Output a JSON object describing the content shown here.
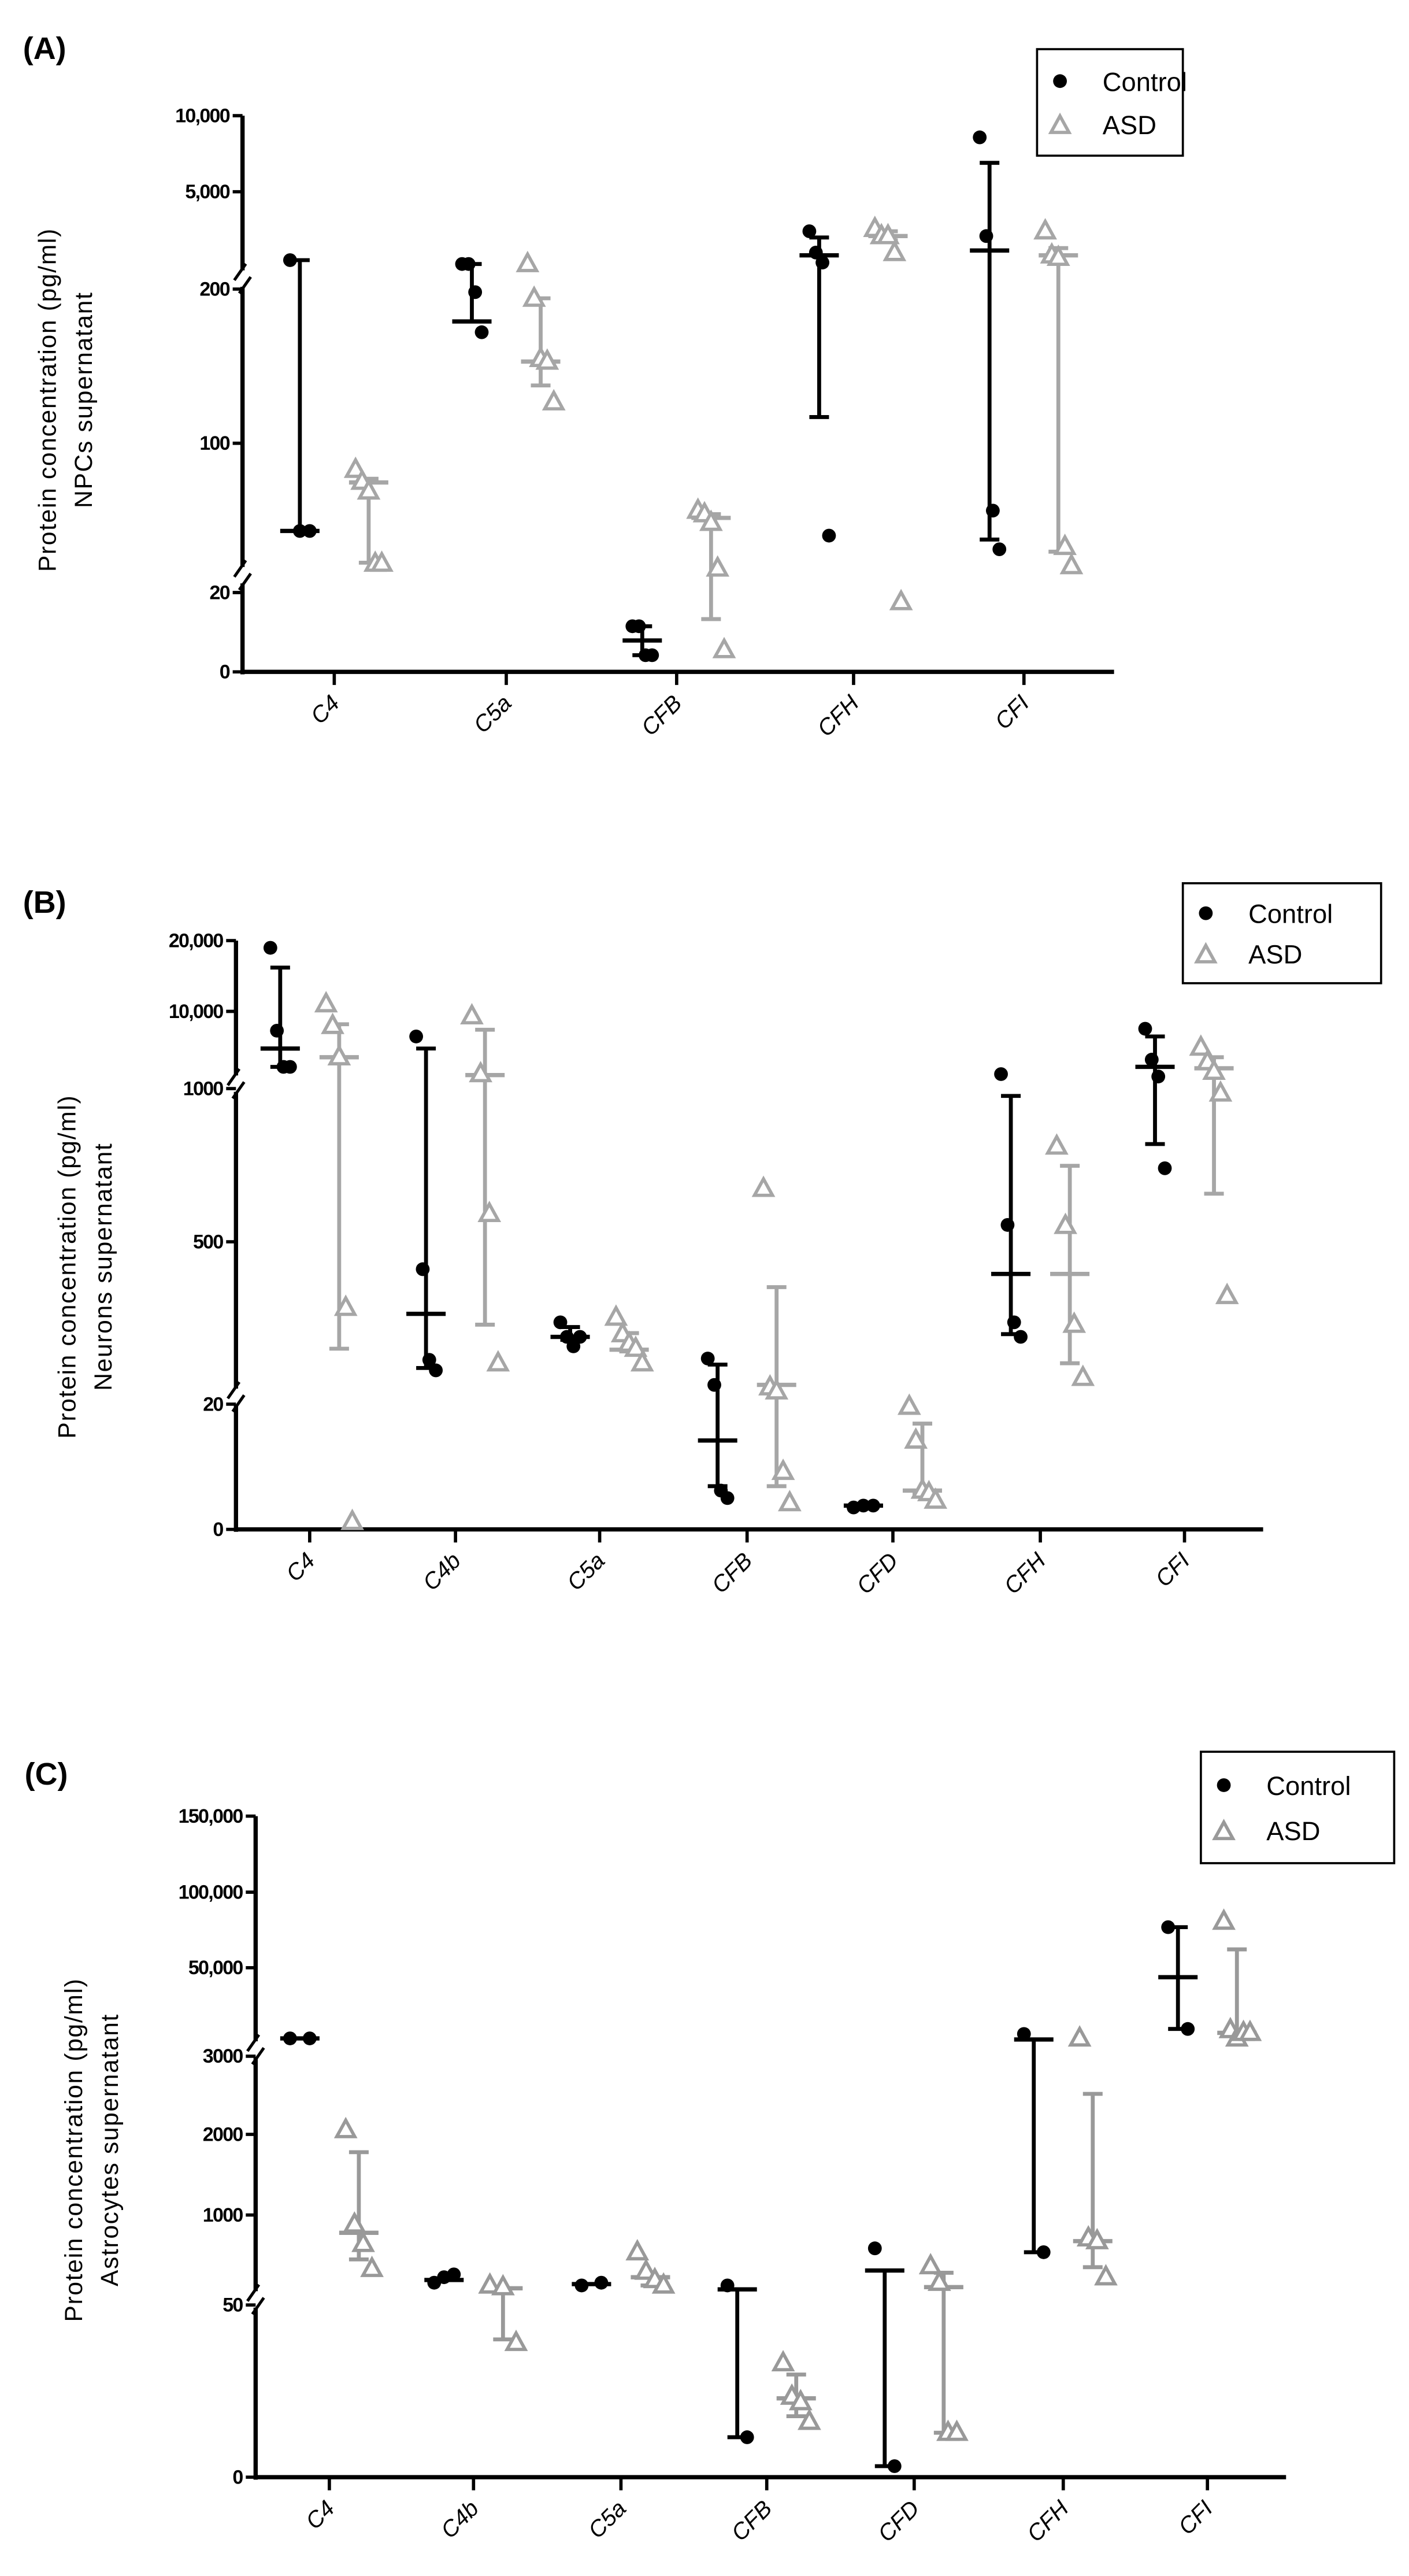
{
  "chart_data": [
    {
      "type": "scatter",
      "panel_label": "(A)",
      "ylabel": [
        "Protein concentration (pg/ml)",
        "NPCs supernatant"
      ],
      "yticks": [
        {
          "label": "0",
          "value": 0
        },
        {
          "label": "20",
          "value": 20
        },
        {
          "label": "100",
          "value": 100
        },
        {
          "label": "200",
          "value": 200
        },
        {
          "label": "5,000",
          "value": 5000
        },
        {
          "label": "10,000",
          "value": 10000
        }
      ],
      "axis_breaks": [
        "20-100",
        "200-5,000"
      ],
      "categories": [
        "C4",
        "C5a",
        "CFB",
        "CFH",
        "CFI"
      ],
      "legend": {
        "placement": "top-right",
        "entries": [
          "Control",
          "ASD"
        ]
      },
      "series": [
        {
          "name": "Control",
          "marker": "circle",
          "color": "#000000",
          "groups": [
            {
              "points": [
                1626,
                53,
                53
              ],
              "mean": 53,
              "lo": 53,
              "hi": 1626
            },
            {
              "points": [
                1436,
                1436,
                198,
                172
              ],
              "mean": 179,
              "lo": 179,
              "hi": 1436
            },
            {
              "points": [
                11.5,
                11.5,
                4.2,
                4.2
              ],
              "mean": 7.9,
              "lo": 4.2,
              "hi": 11.5
            },
            {
              "points": [
                3051,
                2000,
                1507,
                50.5
              ],
              "mean": 1863,
              "lo": 117,
              "hi": 2743
            },
            {
              "points": [
                8576,
                2814,
                63.9,
                43.2
              ],
              "mean": 2101,
              "lo": 48.4,
              "hi": 6899
            }
          ]
        },
        {
          "name": "ASD",
          "marker": "triangle",
          "color": "#a6a6a6",
          "groups": [
            {
              "points": [
                85.8,
                79.4,
                74.2,
                35.5,
                35.5
              ],
              "mean": 79,
              "lo": 36,
              "hi": 81
            },
            {
              "points": [
                1436,
                193.8,
                154.7,
                153,
                126.6
              ],
              "mean": 153,
              "lo": 137.5,
              "hi": 194
            },
            {
              "points": [
                63.9,
                62,
                57.4,
                32.9,
                5.5
              ],
              "mean": 60,
              "lo": 13.3,
              "hi": 62
            },
            {
              "points": [
                3170,
                2814,
                2814,
                1982,
                17.6
              ],
              "mean": 2814,
              "lo": 2600,
              "hi": 3051
            },
            {
              "points": [
                3051,
                1863,
                1745,
                44.5,
                34.2
              ],
              "mean": 1863,
              "lo": 41.9,
              "hi": 2220
            }
          ]
        }
      ]
    },
    {
      "type": "scatter",
      "panel_label": "(B)",
      "ylabel": [
        "Protein concentration (pg/ml)",
        "Neurons supernatant"
      ],
      "yticks": [
        {
          "label": "0",
          "value": 0
        },
        {
          "label": "20",
          "value": 20
        },
        {
          "label": "500",
          "value": 500
        },
        {
          "label": "1000",
          "value": 1000
        },
        {
          "label": "10,000",
          "value": 10000
        },
        {
          "label": "20,000",
          "value": 20000
        }
      ],
      "axis_breaks": [
        "0-20",
        "500-1000"
      ],
      "categories": [
        "C4",
        "C4b",
        "C5a",
        "CFB",
        "CFD",
        "CFH",
        "CFI"
      ],
      "legend": {
        "placement": "top-right",
        "entries": [
          "Control",
          "ASD"
        ]
      },
      "series": [
        {
          "name": "Control",
          "marker": "circle",
          "color": "#000000",
          "groups": [
            {
              "points": [
                18980,
                7750,
                3531,
                3531
              ],
              "mean": 5669,
              "lo": 3531,
              "hi": 16190
            },
            {
              "points": [
                7075,
                419,
                151,
                120
              ],
              "mean": 287,
              "lo": 127,
              "hi": 5669
            },
            {
              "points": [
                262,
                219,
                191,
                219
              ],
              "mean": 219,
              "lo": 210,
              "hi": 248
            },
            {
              "points": [
                155,
                77,
                6.2,
                5
              ],
              "mean": 14.2,
              "lo": 6.9,
              "hi": 137
            },
            {
              "points": [
                3.5,
                3.8,
                3.8
              ],
              "mean": 3.8,
              "lo": 3.8,
              "hi": 3.8
            },
            {
              "points": [
                2688,
                555,
                262,
                219
              ],
              "mean": 405,
              "lo": 227,
              "hi": 976
            },
            {
              "points": [
                7975,
                4375,
                2406,
                740
              ],
              "mean": 3531,
              "lo": 819,
              "hi": 7075
            }
          ]
        },
        {
          "name": "ASD",
          "marker": "triangle",
          "color": "#a6a6a6",
          "groups": [
            {
              "points": [
                11020,
                8313,
                4656,
                305,
                1.2
              ],
              "mean": 4656,
              "lo": 184,
              "hi": 8500
            },
            {
              "points": [
                9438,
                2688,
                591,
                141
              ],
              "mean": 2575,
              "lo": 255,
              "hi": 7863
            },
            {
              "points": [
                276,
                227,
                199,
                184,
                141
              ],
              "mean": 181,
              "lo": 176,
              "hi": 230
            },
            {
              "points": [
                673,
                70,
                58,
                9.2,
                4.2
              ],
              "mean": 77,
              "lo": 6.9,
              "hi": 366
            },
            {
              "points": [
                19.6,
                14.2,
                6.2,
                5.8,
                4.6
              ],
              "mean": 6.2,
              "lo": 5.8,
              "hi": 16.9
            },
            {
              "points": [
                811,
                552,
                255,
                98
              ],
              "mean": 405,
              "lo": 141,
              "hi": 748
            },
            {
              "points": [
                5781,
                4094,
                2969,
                984,
                340
              ],
              "mean": 3363,
              "lo": 657,
              "hi": 4656
            }
          ]
        }
      ]
    },
    {
      "type": "scatter",
      "panel_label": "(C)",
      "ylabel": [
        "Protein concentration (pg/ml)",
        "Astrocytes supernatant"
      ],
      "yticks": [
        {
          "label": "0",
          "value": 0
        },
        {
          "label": "50",
          "value": 50
        },
        {
          "label": "1000",
          "value": 1000
        },
        {
          "label": "2000",
          "value": 2000
        },
        {
          "label": "3000",
          "value": 3000
        },
        {
          "label": "50,000",
          "value": 50000
        },
        {
          "label": "100,000",
          "value": 100000
        },
        {
          "label": "150,000",
          "value": 150000
        }
      ],
      "axis_breaks": [
        "0-50",
        "3000-50,000"
      ],
      "categories": [
        "C4",
        "C4b",
        "C5a",
        "CFB",
        "CFD",
        "CFH",
        "CFI"
      ],
      "legend": {
        "placement": "top-right",
        "entries": [
          "Control",
          "ASD"
        ]
      },
      "series": [
        {
          "name": "Control",
          "marker": "circle",
          "color": "#000000",
          "groups": [
            {
              "points": [
                12460,
                12460
              ],
              "mean": 12460,
              "lo": 12460,
              "hi": 12460
            },
            {
              "points": [
                285,
                343,
                373
              ],
              "mean": 314,
              "lo": 314,
              "hi": 314
            },
            {
              "points": [
                256,
                285
              ],
              "mean": 270,
              "lo": 270,
              "hi": 270
            },
            {
              "points": [
                256,
                11.6
              ],
              "mean": 215,
              "lo": 11.6,
              "hi": 215
            },
            {
              "points": [
                648,
                3.2
              ],
              "mean": 414,
              "lo": 3.2,
              "hi": 414
            },
            {
              "points": [
                14824,
                607
              ],
              "mean": 11869,
              "lo": 607,
              "hi": 11869
            },
            {
              "points": [
                76838,
                17484
              ],
              "mean": 44975,
              "lo": 17484,
              "hi": 76838
            }
          ]
        },
        {
          "name": "ASD",
          "marker": "triangle",
          "color": "#999999",
          "groups": [
            {
              "points": [
                2055,
                900,
                695,
                431
              ],
              "mean": 812,
              "lo": 531,
              "hi": 1779
            },
            {
              "points": [
                256,
                238,
                39
              ],
              "mean": 226,
              "lo": 40,
              "hi": 226
            },
            {
              "points": [
                607,
                402,
                314,
                256
              ],
              "mean": 343,
              "lo": 256,
              "hi": 343
            },
            {
              "points": [
                33.1,
                23.4,
                21.8,
                16.1
              ],
              "mean": 22.9,
              "lo": 17.7,
              "hi": 29.8
            },
            {
              "points": [
                460,
                285,
                12.9,
                12.9
              ],
              "mean": 238,
              "lo": 12.9,
              "hi": 390
            },
            {
              "points": [
                12460,
                754,
                724,
                343
              ],
              "mean": 724,
              "lo": 449,
              "hi": 2518
            },
            {
              "points": [
                80515,
                16900,
                12460,
                15415,
                15415
              ],
              "mean": 15415,
              "lo": 15415,
              "hi": 62132
            }
          ]
        }
      ]
    }
  ]
}
